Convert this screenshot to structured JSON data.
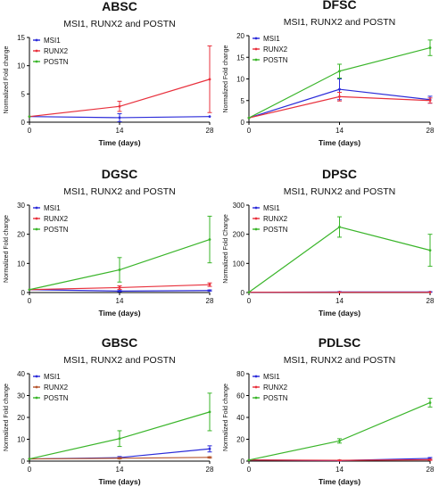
{
  "chart_data": [
    {
      "type": "line",
      "title": "ABSC",
      "subtitle": "MSI1, RUNX2 and POSTN",
      "xlabel": "Time (days)",
      "ylabel": "Normalized Fold change",
      "x": [
        0,
        14,
        28
      ],
      "xticks": [
        0,
        14,
        28
      ],
      "ylim": [
        0,
        15
      ],
      "yticks": [
        0,
        5,
        10,
        15
      ],
      "grid": false,
      "legend": "top-left",
      "series": [
        {
          "name": "MSI1",
          "color": "#2b2bd9",
          "values": [
            1,
            0.8,
            1
          ],
          "errors": [
            0,
            0.7,
            0
          ]
        },
        {
          "name": "RUNX2",
          "color": "#e8303c",
          "values": [
            1,
            2.8,
            7.6
          ],
          "errors": [
            0,
            0.9,
            5.9
          ]
        },
        {
          "name": "POSTN",
          "color": "#3ab52a",
          "values": [
            1,
            null,
            null
          ],
          "errors": [
            0,
            0,
            0
          ]
        }
      ]
    },
    {
      "type": "line",
      "title": "DFSC",
      "subtitle": "MSI1, RUNX2 and POSTN",
      "xlabel": "Time (days)",
      "ylabel": "Normalized Fold change",
      "x": [
        0,
        14,
        28
      ],
      "xticks": [
        0,
        14,
        28
      ],
      "ylim": [
        0,
        20
      ],
      "yticks": [
        0,
        5,
        10,
        15,
        20
      ],
      "grid": false,
      "legend": "top-left",
      "series": [
        {
          "name": "MSI1",
          "color": "#2b2bd9",
          "values": [
            1,
            7.6,
            5.2
          ],
          "errors": [
            0,
            2.4,
            0.8
          ]
        },
        {
          "name": "RUNX2",
          "color": "#e8303c",
          "values": [
            1,
            5.9,
            5.0
          ],
          "errors": [
            0,
            1.0,
            0.6
          ]
        },
        {
          "name": "POSTN",
          "color": "#3ab52a",
          "values": [
            1,
            11.8,
            17.2
          ],
          "errors": [
            0,
            1.6,
            1.8
          ]
        }
      ]
    },
    {
      "type": "line",
      "title": "DGSC",
      "subtitle": "MSI1, RUNX2 and POSTN",
      "xlabel": "Time (days)",
      "ylabel": "Normalized Fold change",
      "x": [
        0,
        14,
        28
      ],
      "xticks": [
        0,
        14,
        28
      ],
      "ylim": [
        0,
        30
      ],
      "yticks": [
        0,
        10,
        20,
        30
      ],
      "grid": false,
      "legend": "top-left",
      "series": [
        {
          "name": "MSI1",
          "color": "#2b2bd9",
          "values": [
            1,
            0.5,
            0.7
          ],
          "errors": [
            0,
            0.2,
            0.2
          ]
        },
        {
          "name": "RUNX2",
          "color": "#e8303c",
          "values": [
            1,
            1.7,
            2.7
          ],
          "errors": [
            0,
            0.6,
            0.6
          ]
        },
        {
          "name": "POSTN",
          "color": "#3ab52a",
          "values": [
            1,
            7.8,
            18.2
          ],
          "errors": [
            0,
            4.2,
            8.0
          ]
        }
      ]
    },
    {
      "type": "line",
      "title": "DPSC",
      "subtitle": "MSI1, RUNX2 and POSTN",
      "xlabel": "Time (days)",
      "ylabel": "Normalized Fold Change",
      "x": [
        0,
        14,
        28
      ],
      "xticks": [
        0,
        14,
        28
      ],
      "ylim": [
        0,
        300
      ],
      "yticks": [
        0,
        100,
        200,
        300
      ],
      "grid": false,
      "legend": "top-left",
      "series": [
        {
          "name": "MSI1",
          "color": "#2b2bd9",
          "values": [
            1,
            2,
            2
          ],
          "errors": [
            0,
            1,
            1
          ]
        },
        {
          "name": "RUNX2",
          "color": "#e8303c",
          "values": [
            1,
            1,
            1
          ],
          "errors": [
            0,
            0,
            0
          ]
        },
        {
          "name": "POSTN",
          "color": "#3ab52a",
          "values": [
            1,
            225,
            145
          ],
          "errors": [
            0,
            35,
            55
          ]
        }
      ]
    },
    {
      "type": "line",
      "title": "GBSC",
      "subtitle": "MSI1, RUNX2 and POSTN",
      "xlabel": "Time (days)",
      "ylabel": "Normalized Fold change",
      "x": [
        0,
        14,
        28
      ],
      "xticks": [
        0,
        14,
        28
      ],
      "ylim": [
        0,
        40
      ],
      "yticks": [
        0,
        10,
        20,
        30,
        40
      ],
      "grid": false,
      "legend": "top-left",
      "series": [
        {
          "name": "MSI1",
          "color": "#2b2bd9",
          "values": [
            1,
            1.6,
            5.6
          ],
          "errors": [
            0,
            0.5,
            1.4
          ]
        },
        {
          "name": "RUNX2",
          "color": "#b5552e",
          "values": [
            1,
            1.3,
            1.7
          ],
          "errors": [
            0,
            0.3,
            0.3
          ]
        },
        {
          "name": "POSTN",
          "color": "#3ab52a",
          "values": [
            1,
            10.3,
            22.5
          ],
          "errors": [
            0,
            3.6,
            8.6
          ]
        }
      ]
    },
    {
      "type": "line",
      "title": "PDLSC",
      "subtitle": "MSI1, RUNX2 and POSTN",
      "xlabel": "Time (days)",
      "ylabel": "Normalized Fold change",
      "x": [
        0,
        14,
        28
      ],
      "xticks": [
        0,
        14,
        28
      ],
      "ylim": [
        0,
        80
      ],
      "yticks": [
        0,
        20,
        40,
        60,
        80
      ],
      "grid": false,
      "legend": "top-left",
      "series": [
        {
          "name": "MSI1",
          "color": "#2b2bd9",
          "values": [
            1,
            0.5,
            2.5
          ],
          "errors": [
            0,
            0.3,
            0.8
          ]
        },
        {
          "name": "RUNX2",
          "color": "#e8303c",
          "values": [
            1,
            0.7,
            1.2
          ],
          "errors": [
            0,
            0.3,
            0.5
          ]
        },
        {
          "name": "POSTN",
          "color": "#3ab52a",
          "values": [
            1,
            18.5,
            53.5
          ],
          "errors": [
            0,
            2.0,
            4.0
          ]
        }
      ]
    }
  ]
}
